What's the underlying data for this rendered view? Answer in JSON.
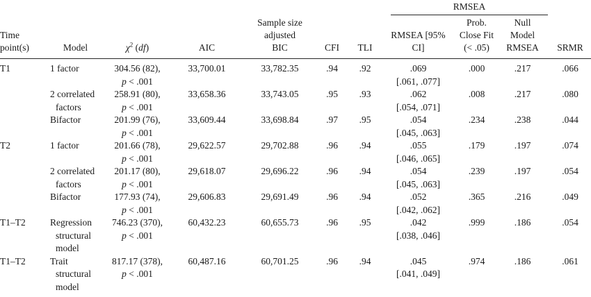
{
  "table": {
    "spanner_label": "RMSEA",
    "p_symbol": "p",
    "chi_header": {
      "chi": "χ",
      "sup": "2",
      "pre": " (",
      "df": "df",
      "post": ")"
    },
    "columns": [
      {
        "id": "time",
        "lines": [
          "Time",
          "point(s)"
        ]
      },
      {
        "id": "model",
        "lines": [
          "Model"
        ]
      },
      {
        "id": "chi2",
        "lines": []
      },
      {
        "id": "aic",
        "lines": [
          "AIC"
        ]
      },
      {
        "id": "bic",
        "lines": [
          "Sample size",
          "adjusted",
          "BIC"
        ]
      },
      {
        "id": "cfi",
        "lines": [
          "CFI"
        ]
      },
      {
        "id": "tli",
        "lines": [
          "TLI"
        ]
      },
      {
        "id": "rmsea",
        "lines": [
          "RMSEA [95%",
          "CI]"
        ]
      },
      {
        "id": "prob",
        "lines": [
          "Prob.",
          "Close Fit",
          "(< .05)"
        ]
      },
      {
        "id": "null",
        "lines": [
          "Null",
          "Model",
          "RMSEA"
        ]
      },
      {
        "id": "srmr",
        "lines": [
          "SRMR"
        ]
      }
    ],
    "rows": [
      {
        "time": "T1",
        "model": [
          "1 factor"
        ],
        "chi2": "304.56 (82),",
        "p": "< .001",
        "aic": "33,700.01",
        "bic": "33,782.35",
        "cfi": ".94",
        "tli": ".92",
        "rmsea": ".069",
        "ci": "[.061, .077]",
        "prob": ".000",
        "null_rmsea": ".217",
        "srmr": ".066"
      },
      {
        "time": "",
        "model": [
          "2 correlated",
          "factors"
        ],
        "chi2": "258.91 (80),",
        "p": "< .001",
        "aic": "33,658.36",
        "bic": "33,743.05",
        "cfi": ".95",
        "tli": ".93",
        "rmsea": ".062",
        "ci": "[.054, .071]",
        "prob": ".008",
        "null_rmsea": ".217",
        "srmr": ".080"
      },
      {
        "time": "",
        "model": [
          "Bifactor"
        ],
        "chi2": "201.99 (76),",
        "p": "< .001",
        "aic": "33,609.44",
        "bic": "33,698.84",
        "cfi": ".97",
        "tli": ".95",
        "rmsea": ".054",
        "ci": "[.045, .063]",
        "prob": ".234",
        "null_rmsea": ".238",
        "srmr": ".044"
      },
      {
        "time": "T2",
        "model": [
          "1 factor"
        ],
        "chi2": "201.66 (78),",
        "p": "< .001",
        "aic": "29,622.57",
        "bic": "29,702.88",
        "cfi": ".96",
        "tli": ".94",
        "rmsea": ".055",
        "ci": "[.046, .065]",
        "prob": ".179",
        "null_rmsea": ".197",
        "srmr": ".074"
      },
      {
        "time": "",
        "model": [
          "2 correlated",
          "factors"
        ],
        "chi2": "201.17 (80),",
        "p": "< .001",
        "aic": "29,618.07",
        "bic": "29,696.22",
        "cfi": ".96",
        "tli": ".94",
        "rmsea": ".054",
        "ci": "[.045, .063]",
        "prob": ".239",
        "null_rmsea": ".197",
        "srmr": ".054"
      },
      {
        "time": "",
        "model": [
          "Bifactor"
        ],
        "chi2": "177.93 (74),",
        "p": "< .001",
        "aic": "29,606.83",
        "bic": "29,691.49",
        "cfi": ".96",
        "tli": ".94",
        "rmsea": ".052",
        "ci": "[.042, .062]",
        "prob": ".365",
        "null_rmsea": ".216",
        "srmr": ".049"
      },
      {
        "time": "T1–T2",
        "model": [
          "Regression",
          "structural",
          "model"
        ],
        "chi2": "746.23 (370),",
        "p": "< .001",
        "aic": "60,432.23",
        "bic": "60,655.73",
        "cfi": ".96",
        "tli": ".95",
        "rmsea": ".042",
        "ci": "[.038, .046]",
        "prob": ".999",
        "null_rmsea": ".186",
        "srmr": ".054"
      },
      {
        "time": "T1–T2",
        "model": [
          "Trait",
          "structural",
          "model"
        ],
        "chi2": "817.17 (378),",
        "p": "< .001",
        "aic": "60,487.16",
        "bic": "60,701.25",
        "cfi": ".96",
        "tli": ".94",
        "rmsea": ".045",
        "ci": "[.041, .049]",
        "prob": ".974",
        "null_rmsea": ".186",
        "srmr": ".061"
      }
    ]
  }
}
